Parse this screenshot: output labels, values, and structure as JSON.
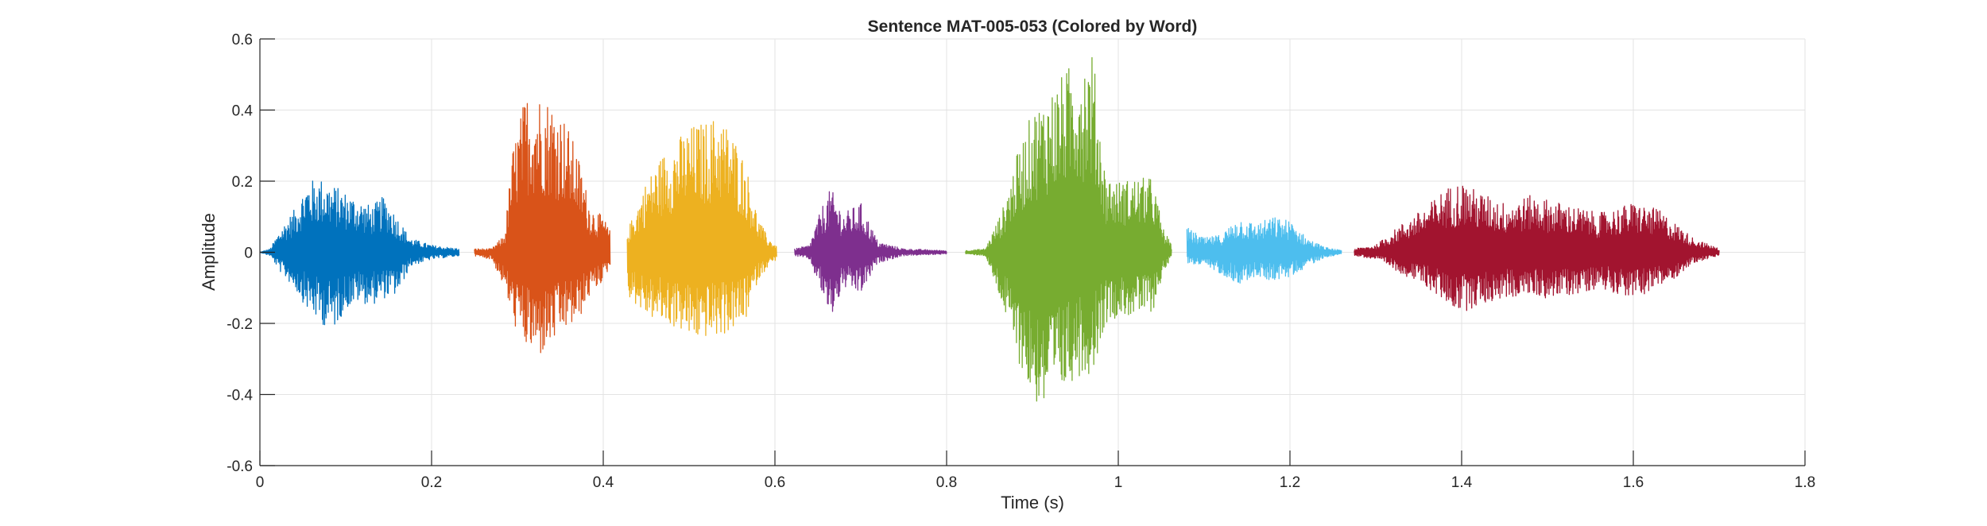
{
  "chart_data": {
    "type": "line",
    "title": "Sentence MAT-005-053 (Colored by Word)",
    "xlabel": "Time (s)",
    "ylabel": "Amplitude",
    "xlim": [
      0,
      1.8
    ],
    "ylim": [
      -0.6,
      0.6
    ],
    "x_ticks": [
      0,
      0.2,
      0.4,
      0.6,
      0.8,
      1,
      1.2,
      1.4,
      1.6,
      1.8
    ],
    "x_tick_labels": [
      "0",
      "0.2",
      "0.4",
      "0.6",
      "0.8",
      "1",
      "1.2",
      "1.4",
      "1.6",
      "1.8"
    ],
    "y_ticks": [
      0.6,
      0.4,
      0.2,
      0,
      -0.2,
      -0.4,
      -0.6
    ],
    "y_tick_labels": [
      "0.6",
      "0.4",
      "0.2",
      "0",
      "-0.2",
      "-0.4",
      "-0.6"
    ],
    "grid": true,
    "series": [
      {
        "color": "#0072BD",
        "t_start": 0.0,
        "t_end": 0.232,
        "envelope": [
          [
            0.0,
            0.0,
            0.0
          ],
          [
            0.012,
            0.01,
            -0.01
          ],
          [
            0.025,
            0.07,
            -0.06
          ],
          [
            0.04,
            0.12,
            -0.1
          ],
          [
            0.055,
            0.2,
            -0.16
          ],
          [
            0.07,
            0.21,
            -0.2
          ],
          [
            0.085,
            0.19,
            -0.22
          ],
          [
            0.1,
            0.17,
            -0.16
          ],
          [
            0.115,
            0.15,
            -0.14
          ],
          [
            0.13,
            0.13,
            -0.15
          ],
          [
            0.145,
            0.16,
            -0.13
          ],
          [
            0.16,
            0.1,
            -0.12
          ],
          [
            0.175,
            0.04,
            -0.04
          ],
          [
            0.2,
            0.02,
            -0.02
          ],
          [
            0.232,
            0.01,
            -0.01
          ]
        ]
      },
      {
        "color": "#D95319",
        "t_start": 0.25,
        "t_end": 0.408,
        "envelope": [
          [
            0.25,
            0.01,
            -0.01
          ],
          [
            0.27,
            0.01,
            -0.02
          ],
          [
            0.285,
            0.05,
            -0.1
          ],
          [
            0.295,
            0.3,
            -0.2
          ],
          [
            0.31,
            0.45,
            -0.27
          ],
          [
            0.325,
            0.45,
            -0.3
          ],
          [
            0.34,
            0.43,
            -0.26
          ],
          [
            0.355,
            0.38,
            -0.22
          ],
          [
            0.37,
            0.28,
            -0.2
          ],
          [
            0.385,
            0.13,
            -0.12
          ],
          [
            0.4,
            0.1,
            -0.08
          ],
          [
            0.408,
            0.06,
            -0.04
          ]
        ]
      },
      {
        "color": "#EDB120",
        "t_start": 0.428,
        "t_end": 0.602,
        "envelope": [
          [
            0.428,
            0.06,
            -0.12
          ],
          [
            0.45,
            0.2,
            -0.18
          ],
          [
            0.47,
            0.28,
            -0.2
          ],
          [
            0.49,
            0.33,
            -0.22
          ],
          [
            0.505,
            0.36,
            -0.25
          ],
          [
            0.52,
            0.37,
            -0.24
          ],
          [
            0.535,
            0.39,
            -0.24
          ],
          [
            0.55,
            0.34,
            -0.22
          ],
          [
            0.565,
            0.26,
            -0.2
          ],
          [
            0.58,
            0.1,
            -0.08
          ],
          [
            0.592,
            0.04,
            -0.04
          ],
          [
            0.602,
            0.02,
            -0.02
          ]
        ]
      },
      {
        "color": "#7E2F8E",
        "t_start": 0.623,
        "t_end": 0.8,
        "envelope": [
          [
            0.623,
            0.01,
            -0.01
          ],
          [
            0.64,
            0.02,
            -0.02
          ],
          [
            0.655,
            0.13,
            -0.12
          ],
          [
            0.665,
            0.18,
            -0.19
          ],
          [
            0.68,
            0.11,
            -0.1
          ],
          [
            0.7,
            0.14,
            -0.12
          ],
          [
            0.72,
            0.03,
            -0.03
          ],
          [
            0.75,
            0.01,
            -0.01
          ],
          [
            0.8,
            0.005,
            -0.005
          ]
        ]
      },
      {
        "color": "#77AC30",
        "t_start": 0.822,
        "t_end": 1.062,
        "envelope": [
          [
            0.822,
            0.005,
            -0.005
          ],
          [
            0.845,
            0.01,
            -0.01
          ],
          [
            0.865,
            0.12,
            -0.15
          ],
          [
            0.88,
            0.26,
            -0.28
          ],
          [
            0.9,
            0.4,
            -0.42
          ],
          [
            0.915,
            0.44,
            -0.45
          ],
          [
            0.935,
            0.5,
            -0.4
          ],
          [
            0.95,
            0.55,
            -0.35
          ],
          [
            0.97,
            0.57,
            -0.34
          ],
          [
            0.985,
            0.22,
            -0.2
          ],
          [
            1.0,
            0.2,
            -0.18
          ],
          [
            1.02,
            0.21,
            -0.18
          ],
          [
            1.04,
            0.21,
            -0.17
          ],
          [
            1.052,
            0.07,
            -0.06
          ],
          [
            1.062,
            0.02,
            -0.02
          ]
        ]
      },
      {
        "color": "#4DBEEE",
        "t_start": 1.08,
        "t_end": 1.26,
        "envelope": [
          [
            1.08,
            0.07,
            -0.03
          ],
          [
            1.1,
            0.04,
            -0.04
          ],
          [
            1.12,
            0.05,
            -0.06
          ],
          [
            1.14,
            0.1,
            -0.09
          ],
          [
            1.16,
            0.08,
            -0.07
          ],
          [
            1.18,
            0.1,
            -0.08
          ],
          [
            1.2,
            0.09,
            -0.07
          ],
          [
            1.22,
            0.04,
            -0.04
          ],
          [
            1.24,
            0.015,
            -0.015
          ],
          [
            1.26,
            0.005,
            -0.005
          ]
        ]
      },
      {
        "color": "#A2142F",
        "t_start": 1.275,
        "t_end": 1.7,
        "envelope": [
          [
            1.275,
            0.01,
            -0.01
          ],
          [
            1.3,
            0.02,
            -0.02
          ],
          [
            1.33,
            0.08,
            -0.06
          ],
          [
            1.36,
            0.13,
            -0.1
          ],
          [
            1.38,
            0.18,
            -0.14
          ],
          [
            1.4,
            0.2,
            -0.17
          ],
          [
            1.42,
            0.17,
            -0.15
          ],
          [
            1.45,
            0.14,
            -0.13
          ],
          [
            1.48,
            0.16,
            -0.12
          ],
          [
            1.5,
            0.15,
            -0.13
          ],
          [
            1.53,
            0.13,
            -0.12
          ],
          [
            1.56,
            0.11,
            -0.1
          ],
          [
            1.6,
            0.14,
            -0.13
          ],
          [
            1.63,
            0.12,
            -0.1
          ],
          [
            1.65,
            0.08,
            -0.07
          ],
          [
            1.67,
            0.04,
            -0.03
          ],
          [
            1.7,
            0.01,
            -0.01
          ]
        ]
      }
    ]
  }
}
